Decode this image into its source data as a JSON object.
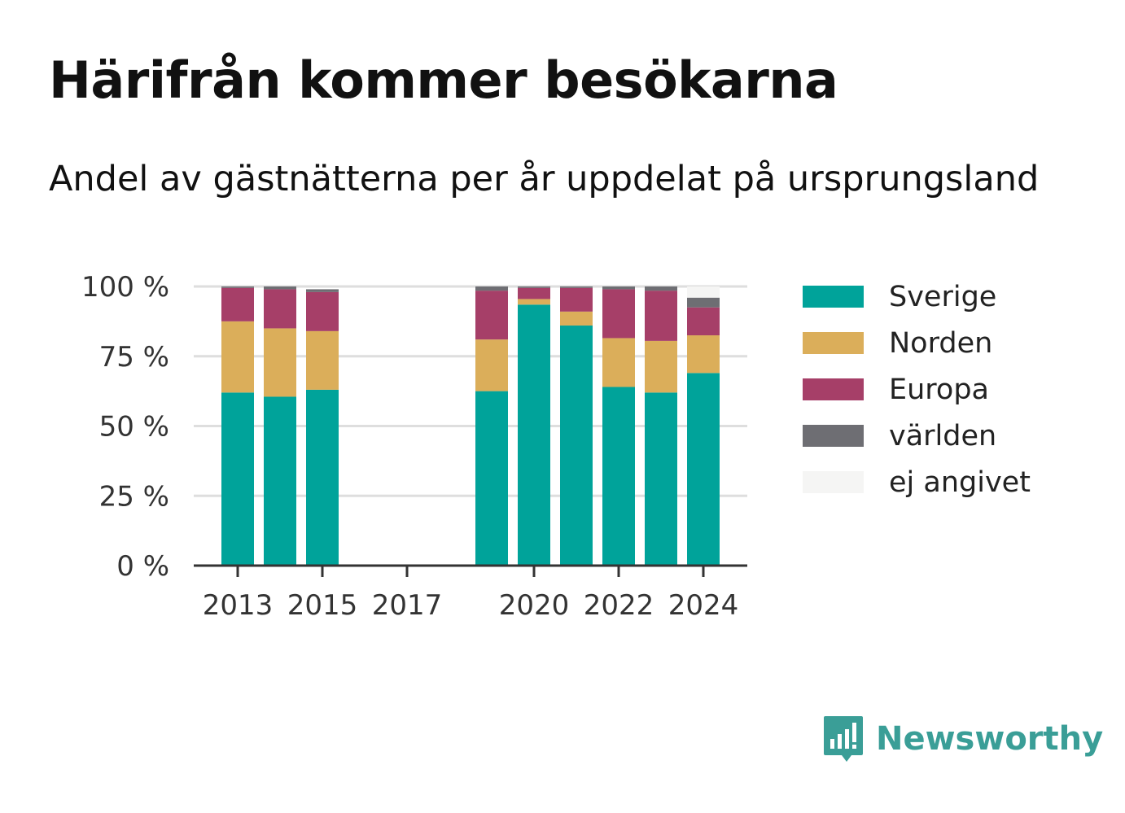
{
  "header": {
    "title": "Härifrån kommer besökarna",
    "subtitle": "Andel av gästnätterna per år uppdelat på ursprungsland"
  },
  "brand": {
    "name": "Newsworthy",
    "icon": "newsworthy-logo-icon",
    "color": "#3a9e97"
  },
  "chart_data": {
    "type": "bar",
    "stacked": true,
    "categories": [
      "2013",
      "2014",
      "2015",
      "2016",
      "2017",
      "2018",
      "2019",
      "2020",
      "2021",
      "2022",
      "2023",
      "2024"
    ],
    "x_tick_labels": [
      "2013",
      "2015",
      "2017",
      "2020",
      "2022",
      "2024"
    ],
    "y_tick_labels": [
      "0 %",
      "25 %",
      "50 %",
      "75 %",
      "100 %"
    ],
    "ylim": [
      0,
      100
    ],
    "grid": true,
    "legend_position": "right",
    "series": [
      {
        "name": "Sverige",
        "color": "#00a39a",
        "values": [
          62,
          60.5,
          63,
          null,
          null,
          null,
          62.5,
          93.5,
          86,
          64,
          62,
          69
        ]
      },
      {
        "name": "Norden",
        "color": "#dbae5a",
        "values": [
          25.5,
          24.5,
          21,
          null,
          null,
          null,
          18.5,
          2,
          5,
          17.5,
          18.5,
          13.5
        ]
      },
      {
        "name": "Europa",
        "color": "#a63f68",
        "values": [
          12,
          14,
          14,
          null,
          null,
          null,
          17.5,
          4,
          8.5,
          17.5,
          18,
          10
        ]
      },
      {
        "name": "världen",
        "color": "#6e6e73",
        "values": [
          0.5,
          1,
          1,
          null,
          null,
          null,
          1.5,
          0.5,
          0.5,
          1,
          1.5,
          3.5
        ]
      },
      {
        "name": "ej angivet",
        "color": "#f5f5f4",
        "values": [
          0,
          0,
          0,
          null,
          null,
          null,
          0,
          0,
          0,
          0,
          0,
          4
        ]
      }
    ]
  }
}
